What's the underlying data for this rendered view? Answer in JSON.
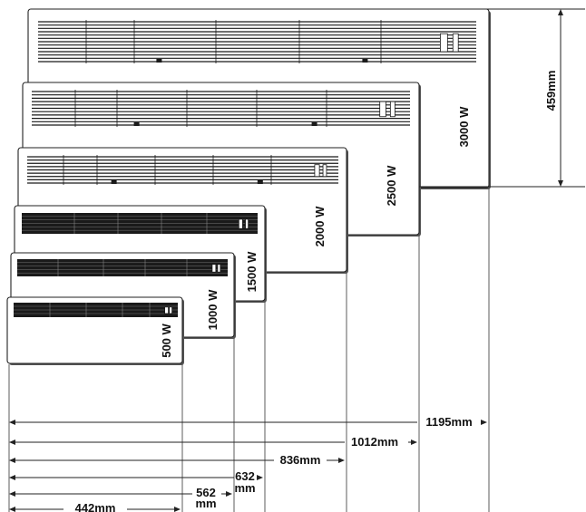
{
  "heaters": [
    {
      "power": "500 W"
    },
    {
      "power": "1000 W"
    },
    {
      "power": "1500 W"
    },
    {
      "power": "2000 W"
    },
    {
      "power": "2500 W"
    },
    {
      "power": "3000 W"
    }
  ],
  "widths": [
    {
      "label": "442mm"
    },
    {
      "label": "562",
      "label2": "mm"
    },
    {
      "label": "632",
      "label2": "mm"
    },
    {
      "label": "836mm"
    },
    {
      "label": "1012mm"
    },
    {
      "label": "1195mm"
    }
  ],
  "height": {
    "label": "459mm"
  },
  "colors": {
    "line": "#222222",
    "grille": "#1a1a1a",
    "background": "#ffffff"
  }
}
